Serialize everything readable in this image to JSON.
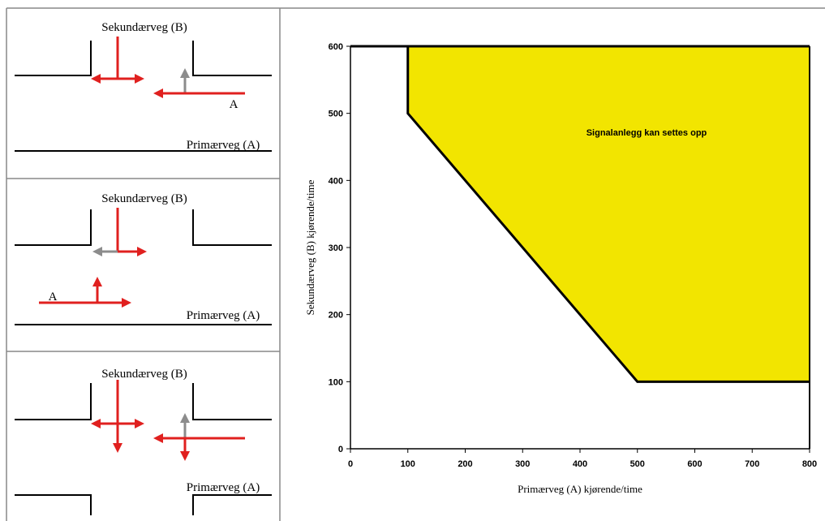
{
  "diagrams": [
    {
      "secondary_road": "Sekundærveg (B)",
      "primary_road": "Primærveg (A)",
      "approach": "A"
    },
    {
      "secondary_road": "Sekundærveg (B)",
      "primary_road": "Primærveg (A)",
      "approach": "A"
    },
    {
      "secondary_road": "Sekundærveg (B)",
      "primary_road": "Primærveg (A)"
    }
  ],
  "chart_data": {
    "type": "area",
    "annotation": "Signalanlegg kan settes opp",
    "x_label": "Primærveg (A) kjørende/time",
    "y_label": "Sekundærveg (B) kjørende/time",
    "x": [
      100,
      100,
      500,
      800
    ],
    "values": [
      600,
      500,
      100,
      100
    ],
    "color": "#f2e500",
    "xlim": [
      0,
      800
    ],
    "ylim": [
      0,
      600
    ],
    "xticks": [
      0,
      100,
      200,
      300,
      400,
      500,
      600,
      700,
      800
    ],
    "yticks": [
      0,
      100,
      200,
      300,
      400,
      500,
      600
    ]
  }
}
